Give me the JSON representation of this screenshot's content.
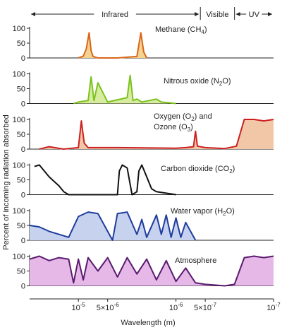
{
  "chart_data": {
    "type": "area",
    "xlabel": "Wavelength (m)",
    "ylabel": "Percent of incoming radiation absorbed",
    "ylim": [
      0,
      100
    ],
    "yticks": [
      "0",
      "50",
      "100"
    ],
    "xticks": [
      "10",
      "-5",
      "5×10",
      "-6",
      "10",
      "-6",
      "5×10",
      "-7",
      "10",
      "-7"
    ],
    "regions": [
      {
        "name": "Infrared",
        "from": -4.5,
        "to": -6.25
      },
      {
        "name": "Visible",
        "from": -6.25,
        "to": -6.6
      },
      {
        "name": "UV",
        "from": -6.6,
        "to": -7
      }
    ],
    "panels": [
      {
        "label": "Methane (CH",
        "sub": "4",
        "tail": ")",
        "color": "#d9661a",
        "fill": "#f2d38f",
        "x": [
          -5,
          -5.05,
          -5.08,
          -5.11,
          -5.13,
          -5.15,
          -5.2,
          -5.4,
          -5.6,
          -5.62,
          -5.64,
          -5.67,
          -5.7
        ],
        "y": [
          0,
          6,
          30,
          85,
          25,
          5,
          0,
          0,
          5,
          45,
          85,
          20,
          0
        ]
      },
      {
        "label": "Nitrous oxide (N",
        "sub": "2",
        "tail": "O)",
        "color": "#7cc21e",
        "fill": "#d8eca0",
        "x": [
          -4.95,
          -5.0,
          -5.1,
          -5.13,
          -5.16,
          -5.2,
          -5.3,
          -5.5,
          -5.53,
          -5.56,
          -5.6,
          -5.65,
          -5.8,
          -5.85,
          -6.0
        ],
        "y": [
          0,
          5,
          10,
          90,
          10,
          70,
          5,
          20,
          95,
          10,
          15,
          5,
          15,
          5,
          0
        ]
      },
      {
        "label": "Oxygen (O",
        "sub": "2",
        "tail": ") and",
        "label2": "Ozone (O",
        "sub2": "3",
        "tail2": ")",
        "color": "#cc2020",
        "fill": "#f2c7a8",
        "x": [
          -4.6,
          -4.7,
          -4.85,
          -5.0,
          -5.03,
          -5.06,
          -5.1,
          -5.4,
          -6.0,
          -6.1,
          -6.18,
          -6.2,
          -6.22,
          -6.3,
          -6.5,
          -6.62,
          -6.7,
          -6.8,
          -6.9,
          -7.0
        ],
        "y": [
          0,
          8,
          0,
          5,
          95,
          20,
          5,
          5,
          3,
          5,
          8,
          60,
          10,
          5,
          2,
          10,
          100,
          100,
          95,
          100
        ]
      },
      {
        "label": "Carbon dioxide (CO",
        "sub": "2",
        "tail": ")",
        "color": "#111111",
        "fill": "none",
        "x": [
          -4.55,
          -4.6,
          -4.7,
          -4.8,
          -4.85,
          -4.9,
          -5.0,
          -5.4,
          -5.42,
          -5.45,
          -5.5,
          -5.55,
          -5.6,
          -5.62,
          -5.65,
          -5.7,
          -5.75,
          -5.8,
          -5.9,
          -6.0
        ],
        "y": [
          95,
          100,
          60,
          30,
          10,
          0,
          0,
          0,
          80,
          100,
          90,
          0,
          10,
          80,
          100,
          60,
          20,
          10,
          5,
          0
        ]
      },
      {
        "label": "Water vapor (H",
        "sub": "2",
        "tail": "O)",
        "color": "#1e3c9e",
        "fill": "#c6d2ee",
        "x": [
          -4.5,
          -4.6,
          -4.7,
          -4.8,
          -4.9,
          -5.0,
          -5.1,
          -5.2,
          -5.3,
          -5.35,
          -5.4,
          -5.5,
          -5.6,
          -5.65,
          -5.7,
          -5.8,
          -5.85,
          -5.9,
          -5.95,
          -6.0,
          -6.05,
          -6.1,
          -6.2
        ],
        "y": [
          50,
          45,
          30,
          20,
          10,
          80,
          95,
          90,
          30,
          0,
          90,
          95,
          20,
          70,
          10,
          85,
          20,
          85,
          10,
          75,
          10,
          60,
          0
        ]
      },
      {
        "label": "Atmosphere",
        "color": "#5a1a6e",
        "fill": "#e6b8e8",
        "x": [
          -4.5,
          -4.6,
          -4.7,
          -4.8,
          -4.9,
          -4.95,
          -5.0,
          -5.05,
          -5.1,
          -5.2,
          -5.3,
          -5.4,
          -5.5,
          -5.6,
          -5.7,
          -5.8,
          -5.9,
          -6.0,
          -6.1,
          -6.2,
          -6.3,
          -6.5,
          -6.6,
          -6.7,
          -6.8,
          -6.9,
          -7.0
        ],
        "y": [
          90,
          100,
          85,
          95,
          90,
          10,
          90,
          20,
          95,
          50,
          95,
          30,
          95,
          40,
          90,
          20,
          85,
          15,
          60,
          10,
          5,
          0,
          5,
          95,
          100,
          95,
          100
        ]
      }
    ]
  }
}
